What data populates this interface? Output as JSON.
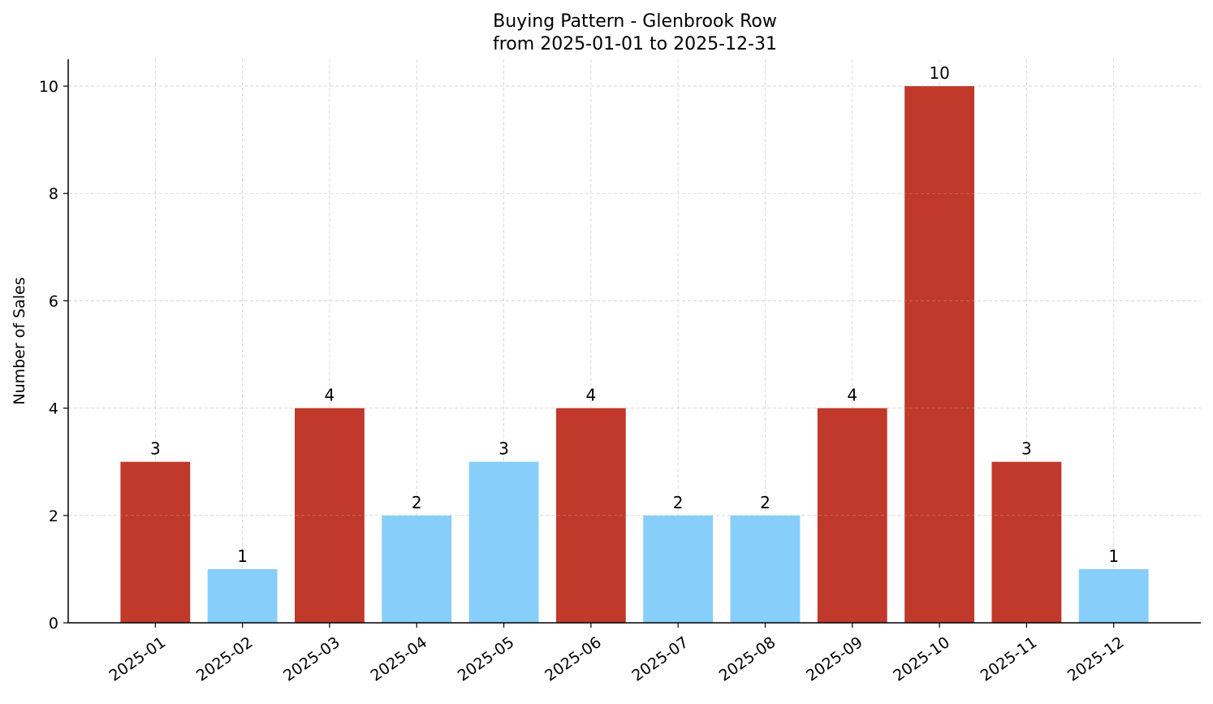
{
  "chart_data": {
    "type": "bar",
    "title": "Buying Pattern - Glenbrook Row",
    "subtitle": "from 2025-01-01 to 2025-12-31",
    "xlabel": "",
    "ylabel": "Number of Sales",
    "categories": [
      "2025-01",
      "2025-02",
      "2025-03",
      "2025-04",
      "2025-05",
      "2025-06",
      "2025-07",
      "2025-08",
      "2025-09",
      "2025-10",
      "2025-11",
      "2025-12"
    ],
    "values": [
      3,
      1,
      4,
      2,
      3,
      4,
      2,
      2,
      4,
      10,
      3,
      1
    ],
    "bar_colors": [
      "#c0392b",
      "#87cefa",
      "#c0392b",
      "#87cefa",
      "#87cefa",
      "#c0392b",
      "#87cefa",
      "#87cefa",
      "#c0392b",
      "#c0392b",
      "#c0392b",
      "#87cefa"
    ],
    "ylim": [
      0,
      10.5
    ],
    "yticks": [
      0,
      2,
      4,
      6,
      8,
      10
    ],
    "grid": true,
    "data_labels": true
  }
}
